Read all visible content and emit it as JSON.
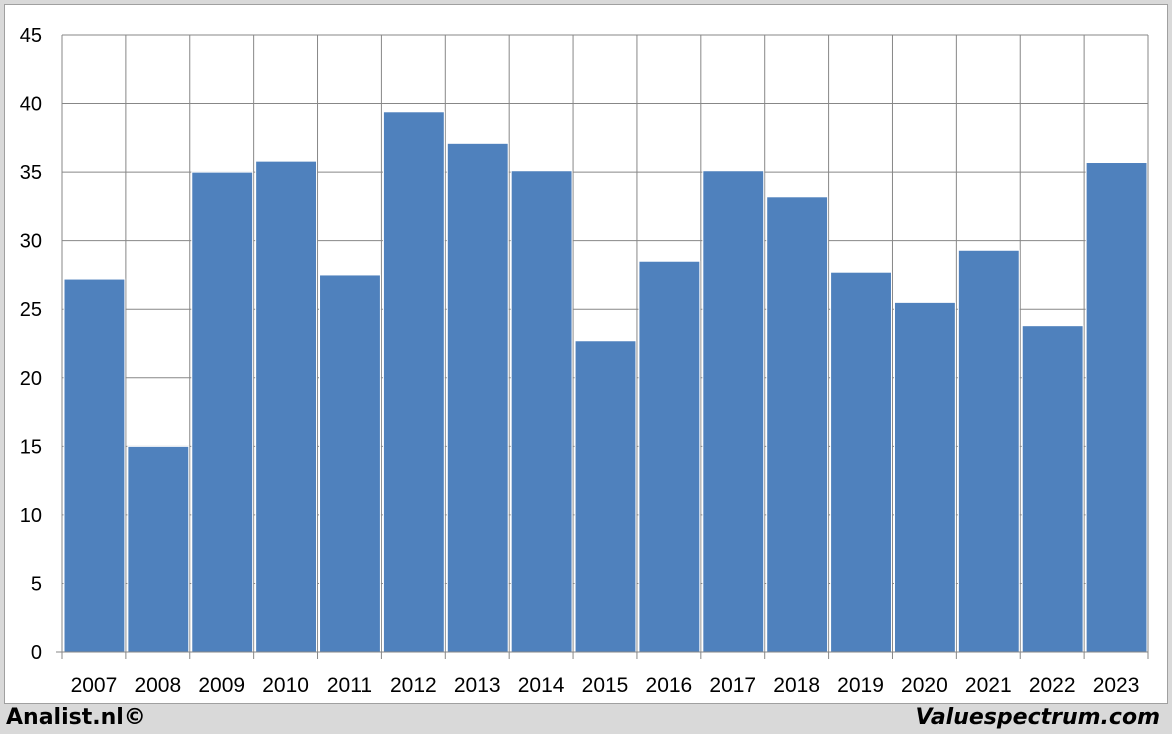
{
  "chart_data": {
    "type": "bar",
    "categories": [
      "2007",
      "2008",
      "2009",
      "2010",
      "2011",
      "2012",
      "2013",
      "2014",
      "2015",
      "2016",
      "2017",
      "2018",
      "2019",
      "2020",
      "2021",
      "2022",
      "2023"
    ],
    "values": [
      27.2,
      15.0,
      35.0,
      35.8,
      27.5,
      39.4,
      37.1,
      35.1,
      22.7,
      28.5,
      35.1,
      33.2,
      27.7,
      25.5,
      29.3,
      23.8,
      35.7
    ],
    "ylim": [
      0,
      45
    ],
    "yticks": [
      0,
      5,
      10,
      15,
      20,
      25,
      30,
      35,
      40,
      45
    ],
    "grid": true,
    "bar_color": "#4f81bd"
  },
  "footer": {
    "left": "Analist.nl©",
    "right": "Valuespectrum.com"
  }
}
